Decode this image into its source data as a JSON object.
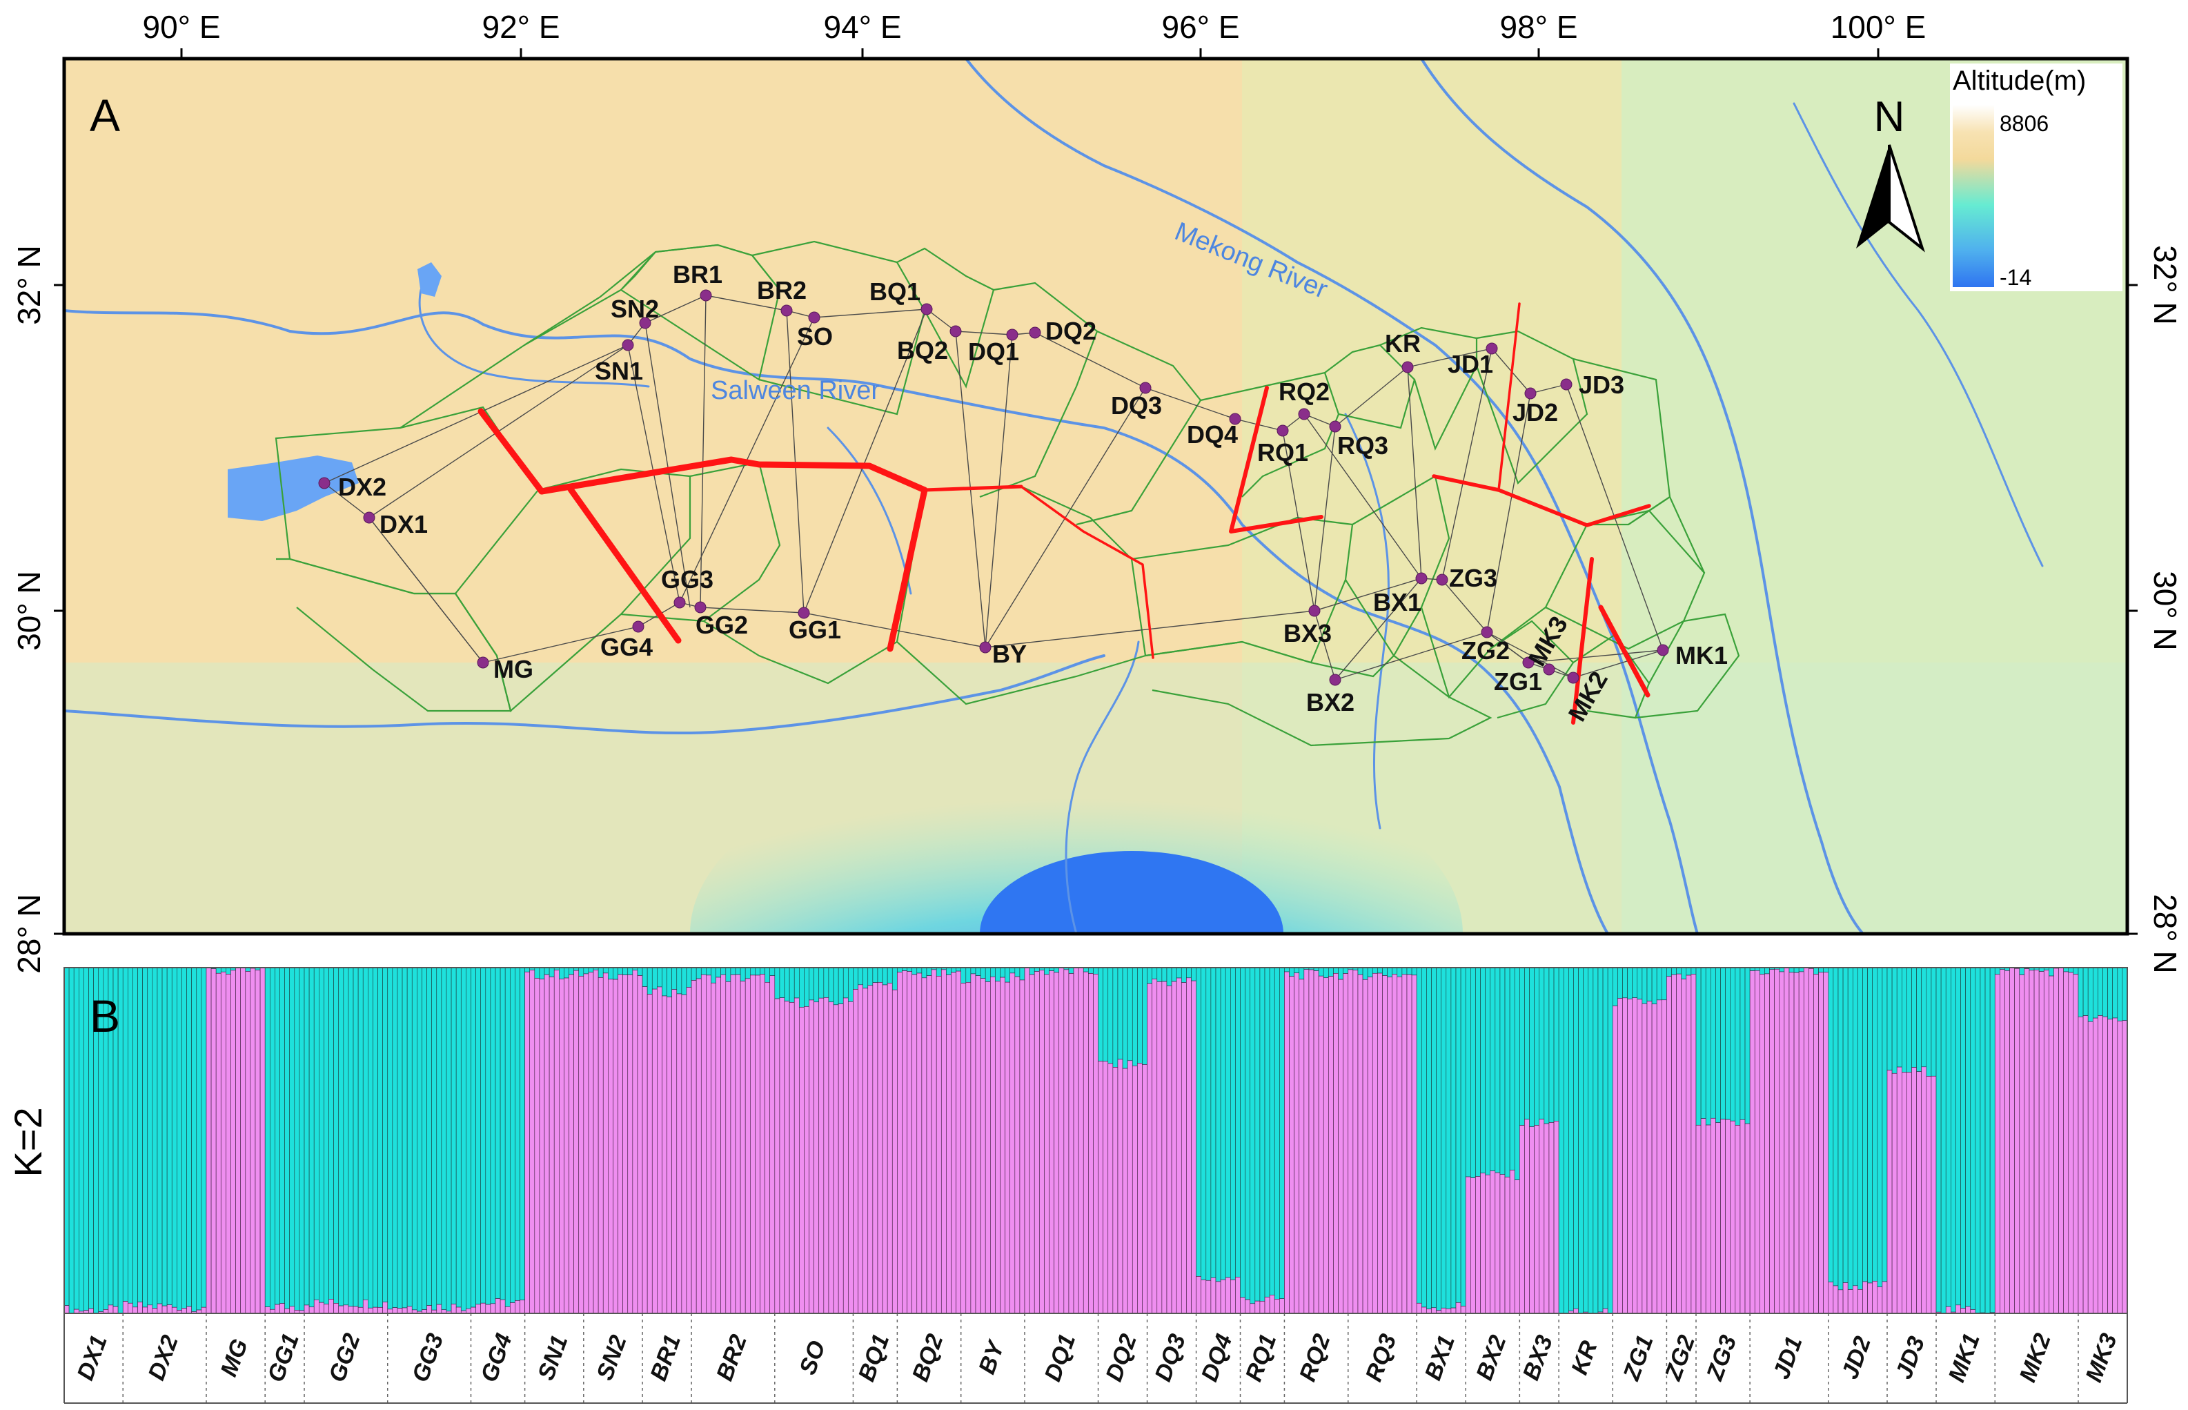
{
  "map": {
    "panel_label": "A",
    "lon_ticks": [
      "90° E",
      "92° E",
      "94° E",
      "96° E",
      "98° E",
      "100° E"
    ],
    "lat_ticks": [
      "32° N",
      "30° N",
      "28° N"
    ],
    "north_label": "N",
    "legend": {
      "title": "Altitude(m)",
      "max": "8806",
      "min": "-14"
    },
    "rivers": [
      {
        "name": "Salween River"
      },
      {
        "name": "Mekong River"
      }
    ],
    "colors": {
      "low": "#3a7ef0",
      "mid": "#66ebd2",
      "high": "#f7dca0",
      "river": "#5c93e6",
      "boundary": "#ff1414",
      "cell": "#3aa13a",
      "site": "#8a2e8a"
    },
    "sites": [
      {
        "id": "DX2"
      },
      {
        "id": "DX1"
      },
      {
        "id": "MG"
      },
      {
        "id": "GG4"
      },
      {
        "id": "GG3"
      },
      {
        "id": "GG2"
      },
      {
        "id": "GG1"
      },
      {
        "id": "SN2"
      },
      {
        "id": "SN1"
      },
      {
        "id": "BR1"
      },
      {
        "id": "BR2"
      },
      {
        "id": "SO"
      },
      {
        "id": "BQ1"
      },
      {
        "id": "BQ2"
      },
      {
        "id": "DQ1"
      },
      {
        "id": "DQ2"
      },
      {
        "id": "DQ3"
      },
      {
        "id": "DQ4"
      },
      {
        "id": "RQ1"
      },
      {
        "id": "RQ2"
      },
      {
        "id": "RQ3"
      },
      {
        "id": "BY"
      },
      {
        "id": "KR"
      },
      {
        "id": "JD1"
      },
      {
        "id": "JD2"
      },
      {
        "id": "JD3"
      },
      {
        "id": "BX1"
      },
      {
        "id": "BX2"
      },
      {
        "id": "BX3"
      },
      {
        "id": "ZG1"
      },
      {
        "id": "ZG2"
      },
      {
        "id": "ZG3"
      },
      {
        "id": "MK1"
      },
      {
        "id": "MK2"
      },
      {
        "id": "MK3"
      }
    ]
  },
  "chart_data": {
    "type": "bar",
    "panel_label": "B",
    "ylabel": "K=2",
    "ylim": [
      0,
      1
    ],
    "stacked": true,
    "series_colors": {
      "cluster1": "#1ee1dc",
      "cluster2": "#ef8ef0"
    },
    "populations": [
      {
        "name": "DX1",
        "n": 12,
        "cluster2": 0.01
      },
      {
        "name": "DX2",
        "n": 17,
        "cluster2": 0.02
      },
      {
        "name": "MG",
        "n": 12,
        "cluster2": 0.99
      },
      {
        "name": "GG1",
        "n": 8,
        "cluster2": 0.02
      },
      {
        "name": "GG2",
        "n": 17,
        "cluster2": 0.03
      },
      {
        "name": "GG3",
        "n": 17,
        "cluster2": 0.02
      },
      {
        "name": "GG4",
        "n": 11,
        "cluster2": 0.03
      },
      {
        "name": "SN1",
        "n": 12,
        "cluster2": 0.98
      },
      {
        "name": "SN2",
        "n": 12,
        "cluster2": 0.98
      },
      {
        "name": "BR1",
        "n": 10,
        "cluster2": 0.93
      },
      {
        "name": "BR2",
        "n": 17,
        "cluster2": 0.97
      },
      {
        "name": "SO",
        "n": 16,
        "cluster2": 0.9
      },
      {
        "name": "BQ1",
        "n": 9,
        "cluster2": 0.95
      },
      {
        "name": "BQ2",
        "n": 13,
        "cluster2": 0.98
      },
      {
        "name": "BY",
        "n": 13,
        "cluster2": 0.97
      },
      {
        "name": "DQ1",
        "n": 15,
        "cluster2": 0.99
      },
      {
        "name": "DQ2",
        "n": 10,
        "cluster2": 0.72
      },
      {
        "name": "DQ3",
        "n": 10,
        "cluster2": 0.96
      },
      {
        "name": "DQ4",
        "n": 9,
        "cluster2": 0.1
      },
      {
        "name": "RQ1",
        "n": 9,
        "cluster2": 0.04
      },
      {
        "name": "RQ2",
        "n": 13,
        "cluster2": 0.98
      },
      {
        "name": "RQ3",
        "n": 14,
        "cluster2": 0.98
      },
      {
        "name": "BX1",
        "n": 10,
        "cluster2": 0.02
      },
      {
        "name": "BX2",
        "n": 11,
        "cluster2": 0.4
      },
      {
        "name": "BX3",
        "n": 8,
        "cluster2": 0.55
      },
      {
        "name": "KR",
        "n": 11,
        "cluster2": 0.0
      },
      {
        "name": "ZG1",
        "n": 11,
        "cluster2": 0.9
      },
      {
        "name": "ZG2",
        "n": 6,
        "cluster2": 0.97
      },
      {
        "name": "ZG3",
        "n": 11,
        "cluster2": 0.55
      },
      {
        "name": "JD1",
        "n": 16,
        "cluster2": 0.99
      },
      {
        "name": "JD2",
        "n": 12,
        "cluster2": 0.08
      },
      {
        "name": "JD3",
        "n": 10,
        "cluster2": 0.7
      },
      {
        "name": "MK1",
        "n": 12,
        "cluster2": 0.01
      },
      {
        "name": "MK2",
        "n": 17,
        "cluster2": 0.99
      },
      {
        "name": "MK3",
        "n": 10,
        "cluster2": 0.85
      }
    ]
  }
}
